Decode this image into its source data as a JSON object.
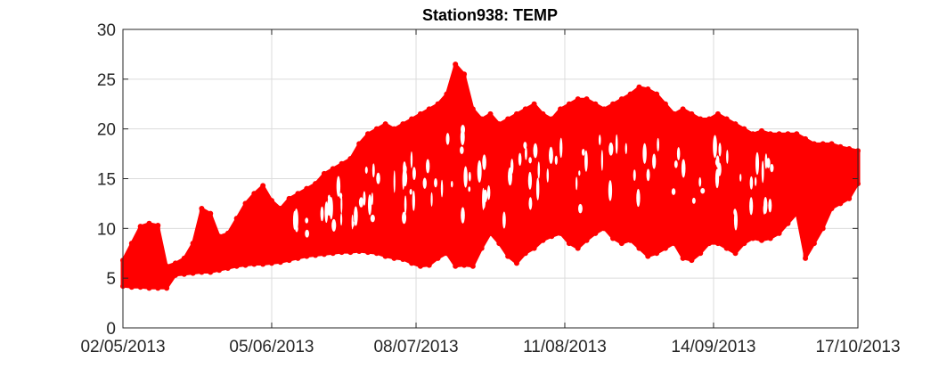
{
  "chart_data": {
    "type": "scatter",
    "title": "Station938: TEMP",
    "xlabel": "",
    "ylabel": "",
    "ylim": [
      0,
      30
    ],
    "yticks": [
      0,
      5,
      10,
      15,
      20,
      25,
      30
    ],
    "xlim": [
      "02/05/2013",
      "17/10/2013"
    ],
    "xticks": [
      "02/05/2013",
      "05/06/2013",
      "08/07/2013",
      "11/08/2013",
      "14/09/2013",
      "17/10/2013"
    ],
    "grid": true,
    "marker_color": "#ff0000",
    "series": [
      {
        "x": [
          "02/05/2013",
          "04/05/2013",
          "06/05/2013",
          "08/05/2013",
          "10/05/2013",
          "12/05/2013",
          "14/05/2013",
          "16/05/2013",
          "18/05/2013",
          "20/05/2013",
          "22/05/2013",
          "24/05/2013",
          "26/05/2013",
          "28/05/2013",
          "30/05/2013",
          "01/06/2013",
          "03/06/2013",
          "05/06/2013",
          "07/06/2013",
          "09/06/2013",
          "11/06/2013",
          "13/06/2013",
          "15/06/2013",
          "17/06/2013",
          "19/06/2013",
          "21/06/2013",
          "23/06/2013",
          "25/06/2013",
          "27/06/2013",
          "29/06/2013",
          "01/07/2013",
          "03/07/2013",
          "05/07/2013",
          "07/07/2013",
          "09/07/2013",
          "11/07/2013",
          "13/07/2013",
          "15/07/2013",
          "17/07/2013",
          "19/07/2013",
          "21/07/2013",
          "23/07/2013",
          "25/07/2013",
          "27/07/2013",
          "29/07/2013",
          "31/07/2013",
          "02/08/2013",
          "04/08/2013",
          "06/08/2013",
          "08/08/2013",
          "10/08/2013",
          "12/08/2013",
          "14/08/2013",
          "16/08/2013",
          "18/08/2013",
          "20/08/2013",
          "22/08/2013",
          "24/08/2013",
          "26/08/2013",
          "28/08/2013",
          "30/08/2013",
          "01/09/2013",
          "03/09/2013",
          "05/09/2013",
          "07/09/2013",
          "09/09/2013",
          "11/09/2013",
          "13/09/2013",
          "15/09/2013",
          "17/09/2013",
          "19/09/2013",
          "21/09/2013",
          "23/09/2013",
          "25/09/2013",
          "27/09/2013",
          "29/09/2013",
          "01/10/2013",
          "03/10/2013",
          "05/10/2013",
          "07/10/2013",
          "09/10/2013",
          "11/10/2013",
          "13/10/2013",
          "15/10/2013",
          "17/10/2013"
        ],
        "min": [
          4.2,
          4.1,
          4.1,
          4.0,
          4.0,
          4.0,
          5.3,
          5.4,
          5.5,
          5.6,
          5.6,
          5.8,
          6.0,
          6.2,
          6.3,
          6.4,
          6.4,
          6.5,
          6.6,
          6.8,
          7.0,
          7.2,
          7.3,
          7.4,
          7.5,
          7.6,
          7.6,
          7.7,
          7.6,
          7.5,
          7.2,
          7.0,
          6.9,
          6.5,
          6.2,
          6.3,
          7.0,
          7.5,
          6.2,
          6.3,
          6.2,
          8.0,
          9.5,
          8.5,
          7.2,
          6.5,
          7.5,
          8.0,
          8.8,
          9.2,
          9.5,
          8.5,
          8.0,
          8.8,
          9.5,
          10.0,
          9.0,
          8.5,
          8.8,
          8.0,
          7.2,
          7.5,
          8.0,
          8.5,
          7.0,
          6.8,
          7.5,
          8.5,
          8.5,
          8.0,
          7.5,
          8.5,
          9.0,
          8.8,
          9.0,
          9.5,
          10.5,
          11.5,
          7.0,
          8.5,
          10.0,
          12.0,
          12.5,
          13.0,
          14.5
        ],
        "max": [
          6.8,
          8.5,
          10.2,
          10.5,
          10.3,
          6.2,
          6.5,
          7.0,
          8.5,
          12.0,
          11.5,
          9.2,
          9.5,
          11.0,
          12.5,
          13.5,
          14.3,
          12.8,
          12.0,
          13.0,
          13.5,
          14.0,
          14.5,
          15.5,
          16.0,
          16.5,
          17.0,
          18.5,
          19.5,
          20.0,
          20.5,
          20.0,
          20.5,
          21.0,
          21.5,
          22.0,
          22.5,
          23.5,
          26.5,
          25.5,
          22.0,
          21.0,
          21.5,
          20.5,
          21.0,
          21.5,
          22.0,
          22.5,
          21.5,
          21.0,
          22.0,
          22.5,
          23.0,
          23.0,
          22.5,
          22.0,
          22.5,
          23.0,
          23.5,
          24.2,
          24.0,
          23.5,
          22.5,
          21.5,
          22.0,
          21.5,
          21.0,
          21.0,
          21.5,
          21.0,
          20.5,
          20.0,
          19.5,
          19.8,
          19.5,
          19.5,
          19.5,
          19.5,
          19.0,
          18.5,
          18.5,
          18.5,
          18.2,
          18.0,
          17.8
        ]
      }
    ]
  }
}
